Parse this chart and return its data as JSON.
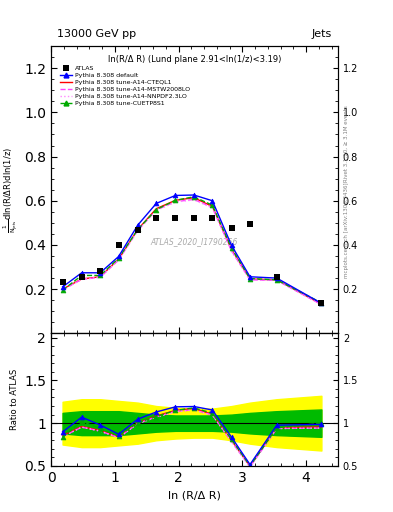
{
  "title_top": "13000 GeV pp",
  "title_right": "Jets",
  "inner_title": "ln(R/Δ R) (Lund plane 2.91<ln(1/z)<3.19)",
  "watermark": "ATLAS_2020_I1790256",
  "right_label_top": "Rivet 3.1.10, ≥ 3.1M events",
  "right_label_bot": "mcplots.cern.ch [arXiv:1306.3436]",
  "xlabel": "ln (R/Δ R)",
  "ylabel_line1": "d² Nₑₘᵢₛₛᵢₒₙₛ",
  "ylabel_line2": "1/Nⱼets dln (R/Δ R) dln (1/z)",
  "ylabel_ratio": "Ratio to ATLAS",
  "xlim": [
    0,
    4.5
  ],
  "ylim_main": [
    0.0,
    1.3
  ],
  "ylim_ratio": [
    0.5,
    2.05
  ],
  "yticks_main": [
    0.2,
    0.4,
    0.6,
    0.8,
    1.0,
    1.2
  ],
  "yticks_ratio": [
    0.5,
    1.0,
    1.5,
    2.0
  ],
  "xticks": [
    0,
    1,
    2,
    3,
    4
  ],
  "atlas_x": [
    0.18,
    0.48,
    0.77,
    1.06,
    1.36,
    1.65,
    1.95,
    2.24,
    2.53,
    2.83,
    3.12,
    3.54,
    4.24
  ],
  "atlas_y": [
    0.234,
    0.256,
    0.28,
    0.4,
    0.468,
    0.52,
    0.524,
    0.524,
    0.52,
    0.476,
    0.496,
    0.256,
    0.138
  ],
  "default_x": [
    0.18,
    0.48,
    0.77,
    1.06,
    1.36,
    1.65,
    1.95,
    2.24,
    2.53,
    2.83,
    3.12,
    3.54,
    4.24
  ],
  "default_y": [
    0.21,
    0.274,
    0.274,
    0.348,
    0.49,
    0.588,
    0.624,
    0.626,
    0.6,
    0.398,
    0.256,
    0.25,
    0.136
  ],
  "cteql1_x": [
    0.18,
    0.48,
    0.77,
    1.06,
    1.36,
    1.65,
    1.95,
    2.24,
    2.53,
    2.83,
    3.12,
    3.54,
    4.24
  ],
  "cteql1_y": [
    0.2,
    0.246,
    0.256,
    0.336,
    0.47,
    0.564,
    0.602,
    0.614,
    0.574,
    0.38,
    0.246,
    0.242,
    0.132
  ],
  "mstw_x": [
    0.18,
    0.48,
    0.77,
    1.06,
    1.36,
    1.65,
    1.95,
    2.24,
    2.53,
    2.83,
    3.12,
    3.54,
    4.24
  ],
  "mstw_y": [
    0.197,
    0.244,
    0.254,
    0.332,
    0.466,
    0.558,
    0.596,
    0.606,
    0.57,
    0.374,
    0.242,
    0.24,
    0.13
  ],
  "nnpdf_x": [
    0.18,
    0.48,
    0.77,
    1.06,
    1.36,
    1.65,
    1.95,
    2.24,
    2.53,
    2.83,
    3.12,
    3.54,
    4.24
  ],
  "nnpdf_y": [
    0.197,
    0.244,
    0.254,
    0.332,
    0.466,
    0.556,
    0.594,
    0.604,
    0.568,
    0.372,
    0.242,
    0.24,
    0.13
  ],
  "cuetp_x": [
    0.18,
    0.48,
    0.77,
    1.06,
    1.36,
    1.65,
    1.95,
    2.24,
    2.53,
    2.83,
    3.12,
    3.54,
    4.24
  ],
  "cuetp_y": [
    0.195,
    0.262,
    0.262,
    0.34,
    0.47,
    0.56,
    0.602,
    0.618,
    0.58,
    0.386,
    0.248,
    0.242,
    0.138
  ],
  "atlas_yellow_lo": [
    0.75,
    0.72,
    0.72,
    0.74,
    0.76,
    0.8,
    0.82,
    0.83,
    0.83,
    0.8,
    0.76,
    0.72,
    0.68
  ],
  "atlas_yellow_hi": [
    1.25,
    1.28,
    1.28,
    1.26,
    1.24,
    1.2,
    1.18,
    1.17,
    1.17,
    1.2,
    1.24,
    1.28,
    1.32
  ],
  "atlas_green_lo": [
    0.88,
    0.86,
    0.86,
    0.86,
    0.88,
    0.9,
    0.91,
    0.91,
    0.91,
    0.9,
    0.88,
    0.86,
    0.84
  ],
  "atlas_green_hi": [
    1.12,
    1.14,
    1.14,
    1.14,
    1.12,
    1.1,
    1.09,
    1.09,
    1.09,
    1.1,
    1.12,
    1.14,
    1.16
  ],
  "color_default": "#0000ff",
  "color_cteql1": "#ff0000",
  "color_mstw": "#ff44ff",
  "color_nnpdf": "#ff88ff",
  "color_cuetp": "#00aa00",
  "color_atlas_marker": "#000000",
  "yellow_band": "#ffff00",
  "green_band": "#00bb00"
}
